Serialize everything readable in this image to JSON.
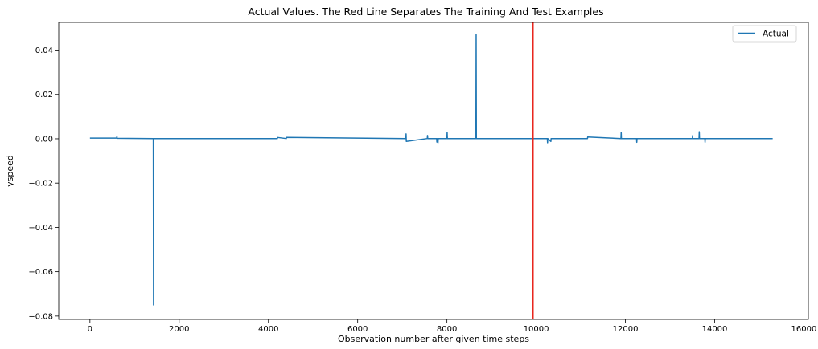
{
  "chart_data": {
    "type": "line",
    "title": "Actual Values. The Red Line Separates The Training And Test Examples",
    "xlabel": "Observation number after given time steps",
    "ylabel": "yspeed",
    "xlim": [
      -700,
      16100
    ],
    "ylim": [
      -0.0815,
      0.0525
    ],
    "xticks": [
      0,
      2000,
      4000,
      6000,
      8000,
      10000,
      12000,
      14000,
      16000
    ],
    "xtick_labels": [
      "0",
      "2000",
      "4000",
      "6000",
      "8000",
      "10000",
      "12000",
      "14000",
      "16000"
    ],
    "yticks": [
      -0.08,
      -0.06,
      -0.04,
      -0.02,
      0.0,
      0.02,
      0.04
    ],
    "ytick_labels": [
      "−0.08",
      "−0.06",
      "−0.04",
      "−0.02",
      "0.00",
      "0.02",
      "0.04"
    ],
    "grid": false,
    "legend_position": "top-right",
    "separator": {
      "x": 9930,
      "color": "#e8271e"
    },
    "series": [
      {
        "name": "Actual",
        "color": "#1f77b4",
        "x": [
          0,
          600,
          605,
          610,
          1420,
          1425,
          1430,
          4200,
          4205,
          4400,
          4405,
          7080,
          7085,
          7090,
          7560,
          7565,
          7570,
          7770,
          7775,
          7780,
          7800,
          7805,
          8000,
          8005,
          8010,
          8650,
          8655,
          8660,
          10250,
          10255,
          10260,
          10330,
          10335,
          11150,
          11155,
          11900,
          11905,
          11910,
          12250,
          12255,
          12260,
          13500,
          13505,
          13510,
          13650,
          13655,
          13660,
          13780,
          13785,
          13790,
          15300
        ],
        "y": [
          0.0003,
          0.0003,
          0.0012,
          0.0002,
          0.0001,
          -0.075,
          0.0001,
          0.0001,
          0.0006,
          0.0001,
          0.0006,
          0.0001,
          0.0022,
          -0.0012,
          0.0001,
          0.0015,
          0.0001,
          0.0001,
          -0.0015,
          0.0001,
          -0.0018,
          0.0001,
          0.0001,
          0.0029,
          0.0001,
          0.0001,
          0.047,
          0.0001,
          0.0001,
          -0.0018,
          0.0001,
          -0.0012,
          0.0001,
          0.0001,
          0.0008,
          0.0001,
          0.0028,
          0.0001,
          0.0001,
          -0.0016,
          0.0001,
          0.0001,
          0.0014,
          0.0001,
          0.0001,
          0.0032,
          0.0001,
          0.0001,
          -0.0016,
          0.0001,
          0.0001
        ]
      }
    ]
  }
}
